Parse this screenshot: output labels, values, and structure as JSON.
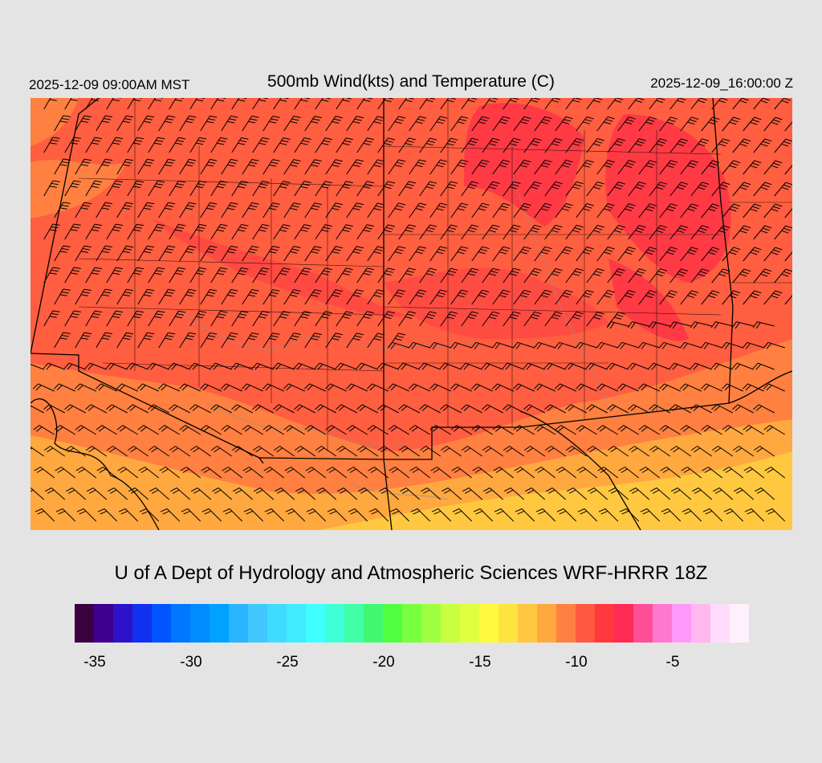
{
  "header": {
    "valid_local": "2025-12-09 09:00AM MST",
    "title": "500mb Wind(kts) and Temperature (C)",
    "valid_utc": "2025-12-09_16:00:00 Z"
  },
  "map": {
    "field": "500mb temperature (C) with wind barbs (kts)",
    "palette": {
      "red": "#ff3a44",
      "base": "#ff5e40",
      "orange": "#ff8040",
      "light_orange": "#ffa840",
      "yellow": "#ffc840"
    }
  },
  "footer": {
    "credit": "U of A Dept of Hydrology and Atmospheric Sciences WRF-HRRR 18Z"
  },
  "colorbar": {
    "min": -36,
    "step": 1,
    "colors": [
      "#3b0040",
      "#3f008f",
      "#2d12c9",
      "#1230ef",
      "#0055ff",
      "#0077ff",
      "#008cff",
      "#00a2ff",
      "#2ab4ff",
      "#40c8ff",
      "#40dcff",
      "#40ecff",
      "#40ffff",
      "#40ffd8",
      "#40ffa8",
      "#40f870",
      "#50ff40",
      "#78ff40",
      "#a0ff40",
      "#c8ff40",
      "#e0ff40",
      "#fffa40",
      "#ffe440",
      "#ffc840",
      "#ffa840",
      "#ff8040",
      "#ff5a40",
      "#ff3840",
      "#ff2a55",
      "#ff4e98",
      "#ff78d0",
      "#ff98f8",
      "#ffb8f0",
      "#ffdcfc",
      "#fff0fc"
    ],
    "tick_labels": [
      {
        "label": "-35",
        "value": -35
      },
      {
        "label": "-30",
        "value": -30
      },
      {
        "label": "-25",
        "value": -25
      },
      {
        "label": "-20",
        "value": -20
      },
      {
        "label": "-15",
        "value": -15
      },
      {
        "label": "-10",
        "value": -10
      },
      {
        "label": "-5",
        "value": -5
      }
    ]
  }
}
